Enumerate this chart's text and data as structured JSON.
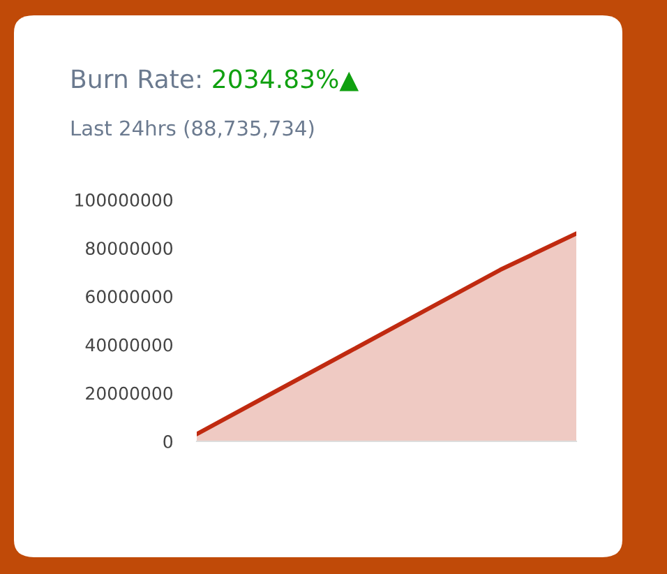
{
  "chart_data": {
    "type": "area",
    "title": "Burn Rate:",
    "subtitle": "Last 24hrs (88,735,734)",
    "annotations": [
      "2034.83%▲"
    ],
    "categories": [
      null,
      null,
      null,
      null,
      null,
      null
    ],
    "series": [
      {
        "color": "#c02a10",
        "values": [
          3000000,
          20000000,
          37000000,
          54000000,
          71000000,
          86000000
        ]
      }
    ],
    "ylim": [
      0,
      100000000
    ],
    "yticks": [
      0,
      20000000,
      40000000,
      60000000,
      80000000,
      100000000
    ],
    "grid": false,
    "legend": false,
    "marker": "none",
    "line_style": "solid"
  }
}
